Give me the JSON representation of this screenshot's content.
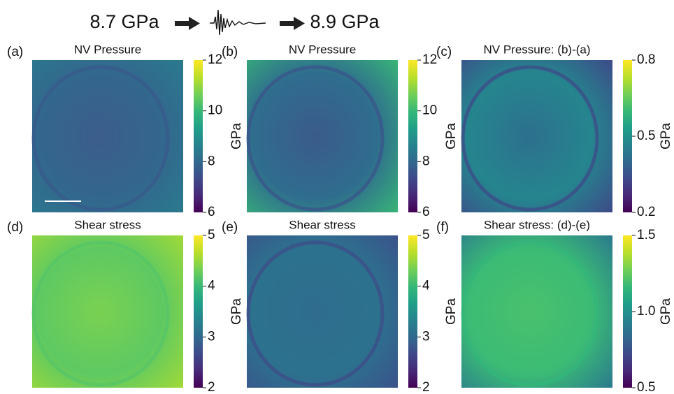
{
  "header": {
    "before": "8.7 GPa",
    "after": "8.9 GPa"
  },
  "chart_data": [
    {
      "type": "heatmap",
      "panel": "(a)",
      "title": "NV Pressure",
      "colorbar_label": "GPa",
      "clim": [
        6,
        12
      ],
      "cticks": [
        6,
        8,
        10,
        12
      ],
      "colormap": "viridis"
    },
    {
      "type": "heatmap",
      "panel": "(b)",
      "title": "NV Pressure",
      "colorbar_label": "GPa",
      "clim": [
        6,
        12
      ],
      "cticks": [
        6,
        8,
        10,
        12
      ],
      "colormap": "viridis"
    },
    {
      "type": "heatmap",
      "panel": "(c)",
      "title": "NV Pressure: (b)-(a)",
      "colorbar_label": "GPa",
      "clim": [
        0.2,
        0.8
      ],
      "cticks": [
        0.2,
        0.5,
        0.8
      ],
      "colormap": "viridis"
    },
    {
      "type": "heatmap",
      "panel": "(d)",
      "title": "Shear stress",
      "colorbar_label": "GPa",
      "clim": [
        2,
        5
      ],
      "cticks": [
        2,
        3,
        4,
        5
      ],
      "colormap": "viridis"
    },
    {
      "type": "heatmap",
      "panel": "(e)",
      "title": "Shear stress",
      "colorbar_label": "GPa",
      "clim": [
        2,
        5
      ],
      "cticks": [
        2,
        3,
        4,
        5
      ],
      "colormap": "viridis"
    },
    {
      "type": "heatmap",
      "panel": "(f)",
      "title": "Shear stress: (d)-(e)",
      "colorbar_label": "GPa",
      "clim": [
        0.5,
        1.5
      ],
      "cticks": [
        0.5,
        {
          "value": 1,
          "label": "1.0"
        },
        1.5
      ],
      "colormap": "viridis"
    }
  ]
}
